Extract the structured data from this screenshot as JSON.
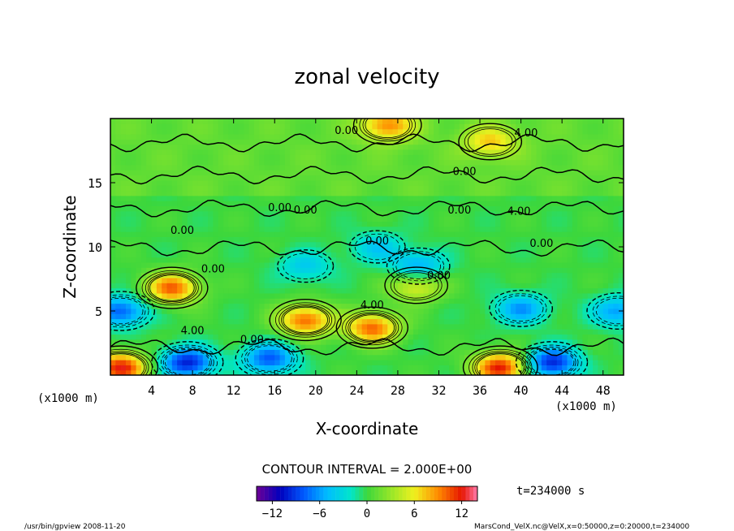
{
  "chart_data": {
    "type": "heatmap",
    "title": "zonal velocity",
    "xlabel": "X-coordinate",
    "ylabel": "Z-coordinate",
    "x_unit_left": "(x1000 m)",
    "x_unit_right": "(x1000 m)",
    "xlim": [
      0,
      50
    ],
    "ylim": [
      0,
      20
    ],
    "x_ticks": [
      4,
      8,
      12,
      16,
      20,
      24,
      28,
      32,
      36,
      40,
      44,
      48
    ],
    "y_ticks": [
      5,
      10,
      15
    ],
    "contour_interval_text": "CONTOUR INTERVAL = 2.000E+00",
    "contour_labels": [
      "0.00",
      "4.00",
      "0.00",
      "0.00",
      "4.00",
      "0.00",
      "0.00",
      "0.00",
      "0.00",
      "0.00",
      "0.00",
      "4.00",
      "4.00",
      "0.00",
      "0.00"
    ],
    "colorbar": {
      "range": [
        -14,
        14
      ],
      "ticks": [
        -12,
        -6,
        0,
        6,
        12
      ],
      "tick_labels": [
        "−12",
        "−6",
        "0",
        "6",
        "12"
      ]
    },
    "time_label": "t=234000 s",
    "features": [
      {
        "x": 6.0,
        "z": 6.8,
        "value": 10
      },
      {
        "x": 19.0,
        "z": 4.3,
        "value": 10
      },
      {
        "x": 25.5,
        "z": 3.7,
        "value": 10
      },
      {
        "x": 29.8,
        "z": 7.0,
        "value": 6
      },
      {
        "x": 1.0,
        "z": 5.0,
        "value": -8
      },
      {
        "x": 7.5,
        "z": 1.0,
        "value": -10
      },
      {
        "x": 15.5,
        "z": 1.3,
        "value": -8
      },
      {
        "x": 43.0,
        "z": 1.0,
        "value": -10
      },
      {
        "x": 26.0,
        "z": 10.0,
        "value": -4
      },
      {
        "x": 19.0,
        "z": 8.5,
        "value": -4
      },
      {
        "x": 40.0,
        "z": 5.2,
        "value": -6
      },
      {
        "x": 49.5,
        "z": 5.0,
        "value": -6
      },
      {
        "x": 30.0,
        "z": 8.5,
        "value": -6
      },
      {
        "x": 1.0,
        "z": 0.6,
        "value": 12
      },
      {
        "x": 38.0,
        "z": 0.6,
        "value": 12
      },
      {
        "x": 27.0,
        "z": 19.5,
        "value": 8
      },
      {
        "x": 37.0,
        "z": 18.2,
        "value": 6
      }
    ]
  },
  "footer": {
    "left": "/usr/bin/gpview   2008-11-20",
    "right": "MarsCond_VelX.nc@VelX,x=0:50000,z=0:20000,t=234000"
  },
  "colors": {
    "frame": "#000000",
    "background": "#ffffff"
  }
}
